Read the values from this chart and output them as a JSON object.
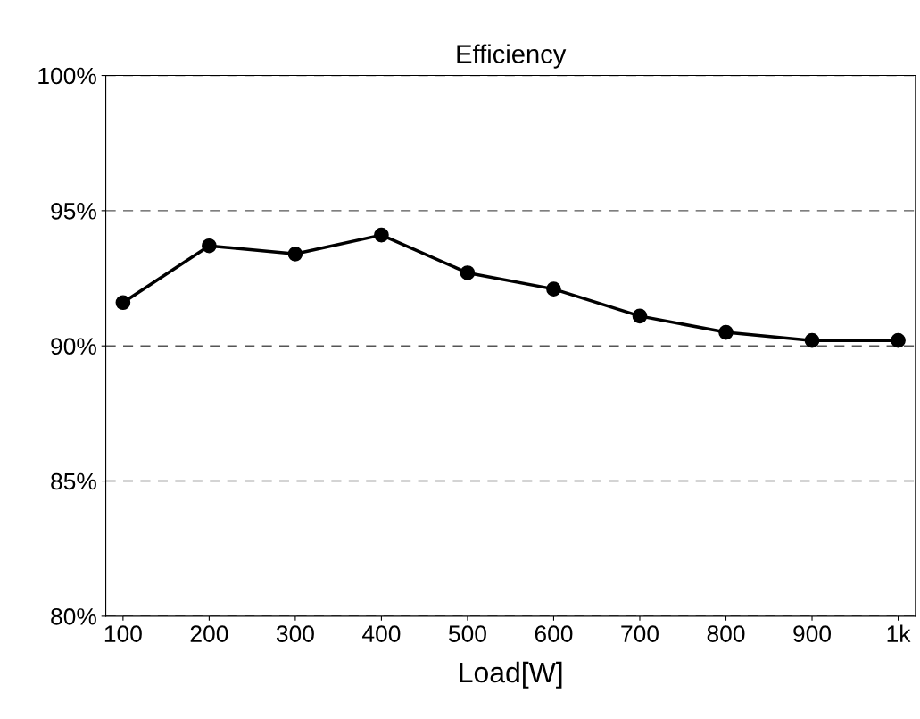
{
  "chart_data": {
    "type": "line",
    "title": "Efficiency",
    "xlabel": "Load[W]",
    "x": [
      100,
      200,
      300,
      400,
      500,
      600,
      700,
      800,
      900,
      1000
    ],
    "series": [
      {
        "color": "#000000",
        "values": [
          91.6,
          93.7,
          93.4,
          94.1,
          92.7,
          92.1,
          91.1,
          90.5,
          90.2,
          90.2
        ]
      }
    ],
    "xlim": [
      80,
      1020
    ],
    "xticks": [
      100,
      200,
      300,
      400,
      500,
      600,
      700,
      800,
      900,
      {
        "value": 1000,
        "label": "1k"
      }
    ],
    "ylim": [
      80,
      100
    ],
    "yticks": [
      {
        "value": 80,
        "label": "80%"
      },
      {
        "value": 85,
        "label": "85%"
      },
      {
        "value": 90,
        "label": "90%"
      },
      {
        "value": 95,
        "label": "95%"
      },
      {
        "value": 100,
        "label": "100%"
      }
    ],
    "grid": "y",
    "marker": "circle",
    "line_style": "solid"
  }
}
